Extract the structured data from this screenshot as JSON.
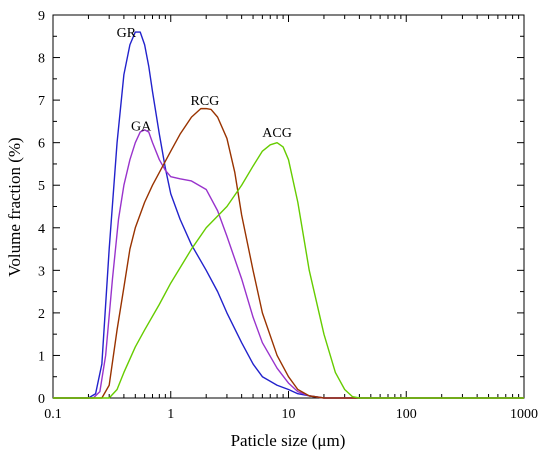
{
  "chart_data": {
    "type": "line",
    "xlabel": "Paticle size (μm)",
    "ylabel": "Volume fraction (%)",
    "xscale": "log",
    "xlim": [
      0.1,
      1000
    ],
    "ylim": [
      0,
      9
    ],
    "xticks": [
      "0.1",
      "1",
      "10",
      "100",
      "1000"
    ],
    "yticks": [
      "0",
      "1",
      "2",
      "3",
      "4",
      "5",
      "6",
      "7",
      "8",
      "9"
    ],
    "grid": false,
    "legend": "none",
    "series": [
      {
        "name": "GR",
        "color": "#2222cc",
        "x": [
          0.1,
          0.2,
          0.23,
          0.26,
          0.3,
          0.35,
          0.4,
          0.45,
          0.5,
          0.55,
          0.6,
          0.65,
          0.7,
          0.8,
          0.9,
          1.0,
          1.2,
          1.5,
          2.0,
          2.5,
          3.0,
          4.0,
          5.0,
          6.0,
          8.0,
          10,
          12,
          15,
          20,
          1000
        ],
        "y": [
          0,
          0,
          0.1,
          0.8,
          3.5,
          6.0,
          7.6,
          8.3,
          8.6,
          8.6,
          8.3,
          7.8,
          7.2,
          6.2,
          5.4,
          4.8,
          4.2,
          3.6,
          3.0,
          2.5,
          2.0,
          1.3,
          0.8,
          0.5,
          0.3,
          0.2,
          0.1,
          0.05,
          0,
          0
        ]
      },
      {
        "name": "GA",
        "color": "#9933cc",
        "x": [
          0.1,
          0.22,
          0.25,
          0.28,
          0.32,
          0.36,
          0.4,
          0.45,
          0.5,
          0.55,
          0.6,
          0.65,
          0.7,
          0.8,
          0.9,
          1.0,
          1.2,
          1.5,
          2.0,
          2.5,
          3.0,
          4.0,
          5.0,
          6.0,
          8.0,
          10,
          12,
          15,
          20,
          1000
        ],
        "y": [
          0,
          0,
          0.15,
          1.0,
          2.8,
          4.2,
          5.0,
          5.6,
          6.0,
          6.25,
          6.3,
          6.25,
          6.0,
          5.6,
          5.35,
          5.2,
          5.15,
          5.1,
          4.9,
          4.4,
          3.8,
          2.8,
          1.9,
          1.3,
          0.7,
          0.35,
          0.15,
          0.05,
          0,
          0
        ]
      },
      {
        "name": "RCG",
        "color": "#993300",
        "x": [
          0.1,
          0.26,
          0.3,
          0.35,
          0.4,
          0.45,
          0.5,
          0.6,
          0.7,
          0.8,
          1.0,
          1.2,
          1.5,
          1.8,
          2.0,
          2.2,
          2.5,
          3.0,
          3.5,
          4.0,
          5.0,
          6.0,
          8.0,
          10,
          12,
          15,
          20,
          1000
        ],
        "y": [
          0,
          0,
          0.3,
          1.6,
          2.6,
          3.5,
          4.0,
          4.6,
          5.0,
          5.3,
          5.8,
          6.2,
          6.6,
          6.8,
          6.8,
          6.78,
          6.6,
          6.1,
          5.3,
          4.3,
          3.0,
          2.0,
          1.0,
          0.5,
          0.2,
          0.05,
          0,
          0
        ]
      },
      {
        "name": "ACG",
        "color": "#66cc00",
        "x": [
          0.1,
          0.3,
          0.35,
          0.4,
          0.5,
          0.6,
          0.8,
          1.0,
          1.5,
          2.0,
          3.0,
          4.0,
          5.0,
          6.0,
          7.0,
          8.0,
          9.0,
          10,
          12,
          15,
          20,
          25,
          30,
          35,
          40,
          1000
        ],
        "y": [
          0,
          0,
          0.2,
          0.6,
          1.2,
          1.6,
          2.2,
          2.7,
          3.5,
          4.0,
          4.5,
          5.0,
          5.45,
          5.8,
          5.95,
          6.0,
          5.9,
          5.6,
          4.6,
          3.0,
          1.5,
          0.6,
          0.2,
          0.03,
          0,
          0
        ]
      }
    ],
    "annotations": [
      {
        "text": "GR",
        "x": 0.42,
        "y": 8.6
      },
      {
        "text": "GA",
        "x": 0.56,
        "y": 6.4
      },
      {
        "text": "RCG",
        "x": 1.95,
        "y": 7.0
      },
      {
        "text": "ACG",
        "x": 8.0,
        "y": 6.25
      }
    ]
  }
}
